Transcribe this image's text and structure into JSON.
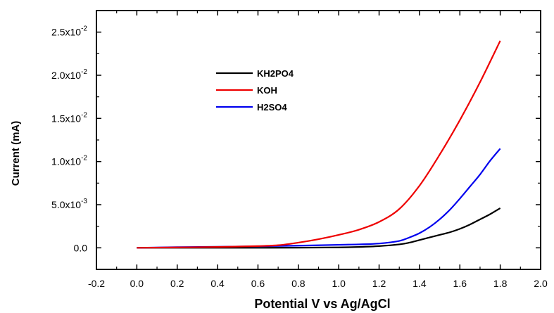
{
  "chart_data": {
    "type": "line",
    "xlabel": "Potential V vs Ag/AgCl",
    "ylabel": "Current (mA)",
    "xlim": [
      -0.2,
      2.0
    ],
    "ylim": [
      -0.0025,
      0.0275
    ],
    "x_ticks": [
      -0.2,
      0.0,
      0.2,
      0.4,
      0.6,
      0.8,
      1.0,
      1.2,
      1.4,
      1.6,
      1.8,
      2.0
    ],
    "x_tick_labels": [
      "-0.2",
      "0.0",
      "0.2",
      "0.4",
      "0.6",
      "0.8",
      "1.0",
      "1.2",
      "1.4",
      "1.6",
      "1.8",
      "2.0"
    ],
    "y_ticks": [
      {
        "value": 0.0,
        "mantissa": "0.0",
        "exponent": ""
      },
      {
        "value": 0.005,
        "mantissa": "5.0x10",
        "exponent": "-3"
      },
      {
        "value": 0.01,
        "mantissa": "1.0x10",
        "exponent": "-2"
      },
      {
        "value": 0.015,
        "mantissa": "1.5x10",
        "exponent": "-2"
      },
      {
        "value": 0.02,
        "mantissa": "2.0x10",
        "exponent": "-2"
      },
      {
        "value": 0.025,
        "mantissa": "2.5x10",
        "exponent": "-2"
      }
    ],
    "legend_position": "upper-left",
    "grid": false,
    "series": [
      {
        "name": "KH2PO4",
        "color": "#000000",
        "x": [
          0.0,
          0.2,
          0.4,
          0.6,
          0.8,
          1.0,
          1.1,
          1.2,
          1.3,
          1.35,
          1.4,
          1.45,
          1.5,
          1.55,
          1.6,
          1.65,
          1.7,
          1.75,
          1.8
        ],
        "y": [
          0.0,
          0.0,
          0.0,
          0.0,
          2e-05,
          5e-05,
          0.0001,
          0.0002,
          0.0004,
          0.0006,
          0.0009,
          0.0012,
          0.0015,
          0.0018,
          0.0022,
          0.0027,
          0.0033,
          0.0039,
          0.0046
        ]
      },
      {
        "name": "KOH",
        "color": "#ee0000",
        "x": [
          0.0,
          0.2,
          0.4,
          0.6,
          0.7,
          0.8,
          0.9,
          1.0,
          1.1,
          1.2,
          1.3,
          1.4,
          1.5,
          1.6,
          1.7,
          1.8
        ],
        "y": [
          0.0,
          5e-05,
          0.0001,
          0.0002,
          0.0003,
          0.0006,
          0.001,
          0.0015,
          0.0021,
          0.003,
          0.0045,
          0.0072,
          0.0108,
          0.0148,
          0.0192,
          0.024
        ]
      },
      {
        "name": "H2SO4",
        "color": "#0000ee",
        "x": [
          0.0,
          0.2,
          0.4,
          0.6,
          0.8,
          1.0,
          1.1,
          1.2,
          1.3,
          1.35,
          1.4,
          1.45,
          1.5,
          1.55,
          1.6,
          1.65,
          1.7,
          1.75,
          1.8
        ],
        "y": [
          0.0,
          8e-05,
          0.00012,
          0.00018,
          0.00025,
          0.00035,
          0.0004,
          0.0005,
          0.0008,
          0.0012,
          0.0017,
          0.0024,
          0.0033,
          0.0044,
          0.0057,
          0.0071,
          0.0085,
          0.0101,
          0.0115
        ]
      }
    ]
  }
}
